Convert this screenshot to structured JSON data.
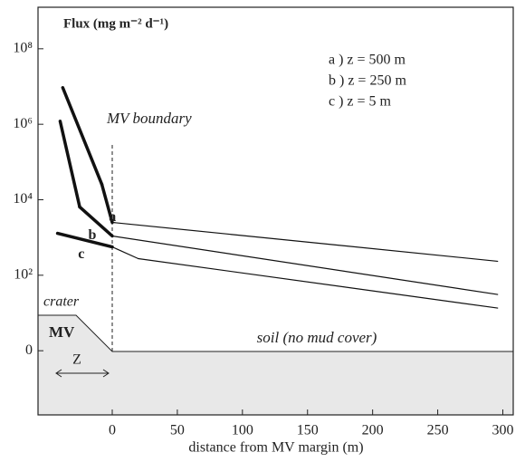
{
  "chart_data": {
    "type": "line",
    "title": "Flux (mg m⁻² d⁻¹)",
    "x_label": "distance from MV margin (m)",
    "annotations": {
      "boundary": "MV boundary",
      "crater": "crater",
      "mv": "MV",
      "z": "Z",
      "soil": "soil (no mud cover)"
    },
    "legend_text": [
      "a ) z = 500 m",
      "b ) z = 250 m",
      "c ) z = 5 m"
    ],
    "series": [
      {
        "name": "a",
        "color": "#111",
        "x": [
          -38,
          -8,
          0,
          296
        ],
        "values": [
          6.97,
          4.41,
          3.4,
          2.37
        ]
      },
      {
        "name": "b",
        "color": "#111",
        "x": [
          -40,
          -25,
          0,
          296
        ],
        "values": [
          6.08,
          3.81,
          3.04,
          1.49
        ]
      },
      {
        "name": "c",
        "color": "#111",
        "x": [
          -42,
          0,
          20,
          296
        ],
        "values": [
          3.11,
          2.75,
          2.44,
          1.13
        ]
      }
    ],
    "xlim": [
      -57,
      308
    ],
    "ylim": [
      -1.7,
      9.1
    ],
    "xticks": [
      0,
      50,
      100,
      150,
      200,
      250,
      300
    ],
    "yticks": [
      0,
      {
        "value": 2,
        "label": "10²"
      },
      {
        "value": 4,
        "label": "10⁴"
      },
      {
        "value": 6,
        "label": "10⁶"
      },
      {
        "value": 8,
        "label": "10⁸"
      }
    ]
  }
}
